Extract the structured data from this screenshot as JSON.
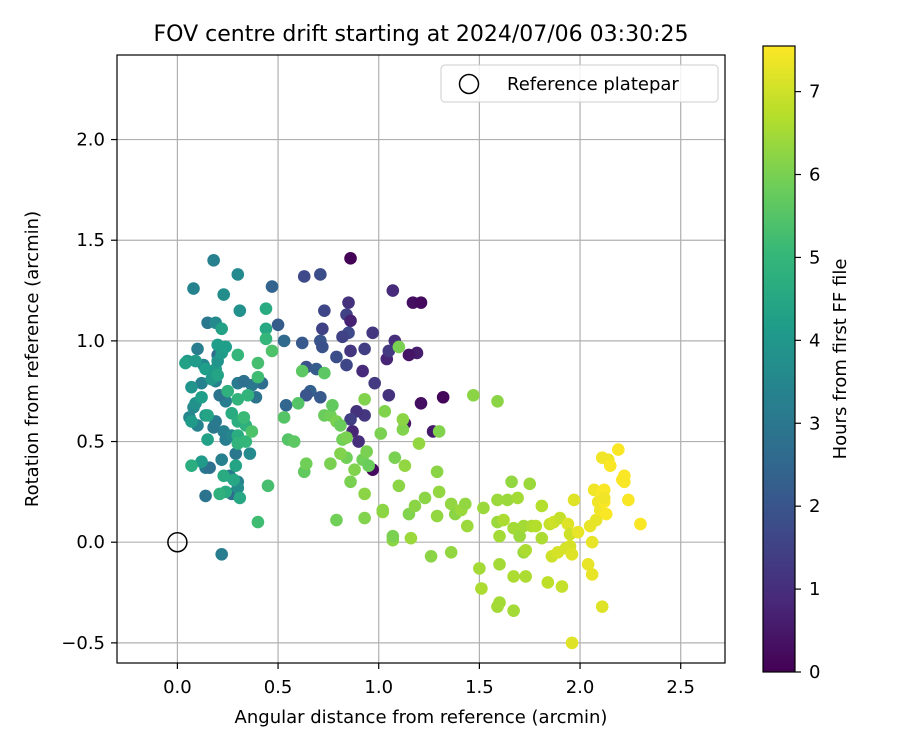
{
  "chart_data": {
    "type": "scatter",
    "title": "FOV centre drift starting at 2024/07/06 03:30:25",
    "xlabel": "Angular distance from reference (arcmin)",
    "ylabel": "Rotation from reference (arcmin)",
    "xlim": [
      -0.3,
      2.72
    ],
    "ylim": [
      -0.6,
      2.42
    ],
    "xticks": [
      0.0,
      0.5,
      1.0,
      1.5,
      2.0,
      2.5
    ],
    "yticks": [
      -0.5,
      0.0,
      0.5,
      1.0,
      1.5,
      2.0
    ],
    "xtick_labels": [
      "0.0",
      "0.5",
      "1.0",
      "1.5",
      "2.0",
      "2.5"
    ],
    "ytick_labels": [
      "−0.5",
      "0.0",
      "0.5",
      "1.0",
      "1.5",
      "2.0"
    ],
    "grid": true,
    "legend": {
      "placement": "top-right",
      "entries": [
        "Reference platepar"
      ]
    },
    "reference_point": {
      "name": "Reference platepar",
      "x": 0.0,
      "y": 0.0,
      "marker": "open-circle"
    },
    "colorbar": {
      "label": "Hours from first FF file",
      "colormap": "viridis",
      "min": 0,
      "max": 7.55,
      "ticks": [
        0,
        1,
        2,
        3,
        4,
        5,
        6,
        7
      ],
      "tick_labels": [
        "0",
        "1",
        "2",
        "3",
        "4",
        "5",
        "6",
        "7"
      ]
    },
    "colormap_stops": [
      "#440154",
      "#482878",
      "#3e4989",
      "#31688e",
      "#26828e",
      "#1f9e89",
      "#35b779",
      "#6ece58",
      "#b5de2b",
      "#fde725"
    ],
    "points": [
      {
        "x": 0.86,
        "y": 1.41,
        "t": 0.05
      },
      {
        "x": 1.17,
        "y": 1.19,
        "t": 0.3
      },
      {
        "x": 1.21,
        "y": 1.19,
        "t": 0.2
      },
      {
        "x": 1.07,
        "y": 1.25,
        "t": 0.9
      },
      {
        "x": 0.85,
        "y": 1.19,
        "t": 1.1
      },
      {
        "x": 0.84,
        "y": 1.13,
        "t": 1.5
      },
      {
        "x": 0.86,
        "y": 1.1,
        "t": 0.7
      },
      {
        "x": 0.97,
        "y": 1.04,
        "t": 1.2
      },
      {
        "x": 1.08,
        "y": 1.0,
        "t": 1.0
      },
      {
        "x": 1.19,
        "y": 0.94,
        "t": 0.6
      },
      {
        "x": 1.15,
        "y": 0.93,
        "t": 0.4
      },
      {
        "x": 1.04,
        "y": 0.91,
        "t": 0.8
      },
      {
        "x": 1.05,
        "y": 0.95,
        "t": 1.3
      },
      {
        "x": 0.93,
        "y": 0.96,
        "t": 1.4
      },
      {
        "x": 0.92,
        "y": 0.85,
        "t": 0.9
      },
      {
        "x": 0.86,
        "y": 0.95,
        "t": 1.2
      },
      {
        "x": 0.84,
        "y": 0.88,
        "t": 1.6
      },
      {
        "x": 0.79,
        "y": 0.92,
        "t": 1.8
      },
      {
        "x": 0.98,
        "y": 0.79,
        "t": 1.3
      },
      {
        "x": 1.05,
        "y": 0.73,
        "t": 1.1
      },
      {
        "x": 1.21,
        "y": 0.69,
        "t": 0.3
      },
      {
        "x": 1.32,
        "y": 0.72,
        "t": 0.1
      },
      {
        "x": 1.13,
        "y": 0.59,
        "t": 0.4
      },
      {
        "x": 1.27,
        "y": 0.55,
        "t": 0.5
      },
      {
        "x": 0.93,
        "y": 0.63,
        "t": 1.2
      },
      {
        "x": 0.89,
        "y": 0.65,
        "t": 1.1
      },
      {
        "x": 0.86,
        "y": 0.61,
        "t": 1.4
      },
      {
        "x": 0.87,
        "y": 0.55,
        "t": 0.8
      },
      {
        "x": 0.9,
        "y": 0.5,
        "t": 1.0
      },
      {
        "x": 0.97,
        "y": 0.36,
        "t": 0.2
      },
      {
        "x": 0.85,
        "y": 1.04,
        "t": 1.7
      },
      {
        "x": 0.72,
        "y": 1.06,
        "t": 1.5
      },
      {
        "x": 0.71,
        "y": 1.0,
        "t": 2.0
      },
      {
        "x": 0.72,
        "y": 0.97,
        "t": 1.9
      },
      {
        "x": 0.73,
        "y": 1.15,
        "t": 1.6
      },
      {
        "x": 0.71,
        "y": 1.33,
        "t": 1.8
      },
      {
        "x": 0.63,
        "y": 1.32,
        "t": 1.7
      },
      {
        "x": 0.64,
        "y": 0.87,
        "t": 1.9
      },
      {
        "x": 0.69,
        "y": 0.86,
        "t": 2.2
      },
      {
        "x": 0.62,
        "y": 0.99,
        "t": 2.1
      },
      {
        "x": 0.66,
        "y": 0.75,
        "t": 2.3
      },
      {
        "x": 0.64,
        "y": 0.73,
        "t": 2.0
      },
      {
        "x": 0.71,
        "y": 0.72,
        "t": 2.1
      },
      {
        "x": 0.82,
        "y": 1.02,
        "t": 1.5
      },
      {
        "x": 0.5,
        "y": 1.08,
        "t": 2.2
      },
      {
        "x": 0.53,
        "y": 1.0,
        "t": 2.6
      },
      {
        "x": 0.54,
        "y": 0.68,
        "t": 2.5
      },
      {
        "x": 0.47,
        "y": 1.27,
        "t": 2.4
      },
      {
        "x": 0.42,
        "y": 0.79,
        "t": 2.7
      },
      {
        "x": 0.37,
        "y": 0.78,
        "t": 3.0
      },
      {
        "x": 0.39,
        "y": 0.72,
        "t": 2.9
      },
      {
        "x": 0.3,
        "y": 0.79,
        "t": 3.1
      },
      {
        "x": 0.24,
        "y": 0.7,
        "t": 3.2
      },
      {
        "x": 0.23,
        "y": 0.55,
        "t": 3.3
      },
      {
        "x": 0.18,
        "y": 0.57,
        "t": 3.0
      },
      {
        "x": 0.19,
        "y": 0.84,
        "t": 2.8
      },
      {
        "x": 0.2,
        "y": 0.93,
        "t": 2.6
      },
      {
        "x": 0.19,
        "y": 0.8,
        "t": 3.4
      },
      {
        "x": 0.21,
        "y": 0.73,
        "t": 2.9
      },
      {
        "x": 0.19,
        "y": 0.6,
        "t": 3.1
      },
      {
        "x": 0.12,
        "y": 0.79,
        "t": 3.3
      },
      {
        "x": 0.13,
        "y": 0.88,
        "t": 3.5
      },
      {
        "x": 0.1,
        "y": 0.96,
        "t": 3.2
      },
      {
        "x": 0.15,
        "y": 1.09,
        "t": 3.0
      },
      {
        "x": 0.19,
        "y": 1.09,
        "t": 3.6
      },
      {
        "x": 0.08,
        "y": 1.26,
        "t": 3.4
      },
      {
        "x": 0.18,
        "y": 1.4,
        "t": 3.3
      },
      {
        "x": 0.23,
        "y": 1.23,
        "t": 3.7
      },
      {
        "x": 0.3,
        "y": 1.33,
        "t": 3.6
      },
      {
        "x": 0.31,
        "y": 1.15,
        "t": 3.8
      },
      {
        "x": 0.22,
        "y": -0.06,
        "t": 3.2
      },
      {
        "x": 0.14,
        "y": 0.23,
        "t": 2.9
      },
      {
        "x": 0.14,
        "y": 0.37,
        "t": 3.1
      },
      {
        "x": 0.16,
        "y": 0.37,
        "t": 2.8
      },
      {
        "x": 0.22,
        "y": 0.41,
        "t": 3.3
      },
      {
        "x": 0.24,
        "y": 0.51,
        "t": 3.2
      },
      {
        "x": 0.27,
        "y": 0.53,
        "t": 3.5
      },
      {
        "x": 0.29,
        "y": 0.44,
        "t": 3.0
      },
      {
        "x": 0.33,
        "y": 0.8,
        "t": 2.8
      },
      {
        "x": 0.36,
        "y": 0.44,
        "t": 3.6
      },
      {
        "x": 0.26,
        "y": 0.33,
        "t": 3.1
      },
      {
        "x": 0.27,
        "y": 0.24,
        "t": 2.7
      },
      {
        "x": 0.3,
        "y": 0.3,
        "t": 3.4
      },
      {
        "x": 0.3,
        "y": 0.27,
        "t": 3.7
      },
      {
        "x": 0.08,
        "y": 0.67,
        "t": 3.6
      },
      {
        "x": 0.06,
        "y": 0.62,
        "t": 3.5
      },
      {
        "x": 0.09,
        "y": 0.69,
        "t": 3.8
      },
      {
        "x": 0.1,
        "y": 0.58,
        "t": 3.4
      },
      {
        "x": 0.07,
        "y": 0.77,
        "t": 3.9
      },
      {
        "x": 0.05,
        "y": 0.9,
        "t": 4.0
      },
      {
        "x": 0.04,
        "y": 0.89,
        "t": 4.3
      },
      {
        "x": 0.09,
        "y": 0.9,
        "t": 4.1
      },
      {
        "x": 0.14,
        "y": 0.86,
        "t": 4.2
      },
      {
        "x": 0.17,
        "y": 0.81,
        "t": 4.0
      },
      {
        "x": 0.19,
        "y": 0.86,
        "t": 4.1
      },
      {
        "x": 0.2,
        "y": 0.9,
        "t": 3.9
      },
      {
        "x": 0.2,
        "y": 0.98,
        "t": 4.2
      },
      {
        "x": 0.22,
        "y": 1.06,
        "t": 4.3
      },
      {
        "x": 0.2,
        "y": 0.83,
        "t": 4.4
      },
      {
        "x": 0.22,
        "y": 0.94,
        "t": 4.1
      },
      {
        "x": 0.24,
        "y": 0.97,
        "t": 4.2
      },
      {
        "x": 0.07,
        "y": 0.6,
        "t": 4.1
      },
      {
        "x": 0.12,
        "y": 0.72,
        "t": 4.2
      },
      {
        "x": 0.14,
        "y": 0.63,
        "t": 4.0
      },
      {
        "x": 0.15,
        "y": 0.51,
        "t": 4.3
      },
      {
        "x": 0.12,
        "y": 0.4,
        "t": 4.1
      },
      {
        "x": 0.15,
        "y": 0.63,
        "t": 4.4
      },
      {
        "x": 0.29,
        "y": 0.38,
        "t": 4.4
      },
      {
        "x": 0.28,
        "y": 0.31,
        "t": 4.5
      },
      {
        "x": 0.31,
        "y": 0.22,
        "t": 4.5
      },
      {
        "x": 0.24,
        "y": 0.25,
        "t": 4.6
      },
      {
        "x": 0.07,
        "y": 0.38,
        "t": 4.7
      },
      {
        "x": 0.21,
        "y": 0.24,
        "t": 4.8
      },
      {
        "x": 0.23,
        "y": 0.33,
        "t": 4.6
      },
      {
        "x": 0.44,
        "y": 1.06,
        "t": 4.5
      },
      {
        "x": 0.44,
        "y": 1.16,
        "t": 4.6
      },
      {
        "x": 0.3,
        "y": 0.53,
        "t": 4.7
      },
      {
        "x": 0.27,
        "y": 0.64,
        "t": 4.6
      },
      {
        "x": 0.3,
        "y": 0.6,
        "t": 4.7
      },
      {
        "x": 0.34,
        "y": 0.58,
        "t": 4.8
      },
      {
        "x": 0.3,
        "y": 0.49,
        "t": 4.9
      },
      {
        "x": 0.34,
        "y": 0.5,
        "t": 5.0
      },
      {
        "x": 0.25,
        "y": 0.75,
        "t": 4.8
      },
      {
        "x": 0.3,
        "y": 0.71,
        "t": 4.9
      },
      {
        "x": 0.33,
        "y": 0.62,
        "t": 5.1
      },
      {
        "x": 0.35,
        "y": 0.73,
        "t": 4.9
      },
      {
        "x": 0.3,
        "y": 0.93,
        "t": 5.0
      },
      {
        "x": 0.4,
        "y": 0.82,
        "t": 5.2
      },
      {
        "x": 0.4,
        "y": 0.89,
        "t": 5.3
      },
      {
        "x": 0.44,
        "y": 1.01,
        "t": 5.0
      },
      {
        "x": 0.47,
        "y": 0.95,
        "t": 5.4
      },
      {
        "x": 0.4,
        "y": 0.1,
        "t": 5.2
      },
      {
        "x": 0.45,
        "y": 0.28,
        "t": 5.3
      },
      {
        "x": 0.37,
        "y": 0.55,
        "t": 5.4
      },
      {
        "x": 0.55,
        "y": 0.51,
        "t": 5.5
      },
      {
        "x": 0.53,
        "y": 0.62,
        "t": 5.5
      },
      {
        "x": 0.58,
        "y": 0.5,
        "t": 5.6
      },
      {
        "x": 0.6,
        "y": 0.69,
        "t": 5.5
      },
      {
        "x": 0.62,
        "y": 0.85,
        "t": 5.6
      },
      {
        "x": 0.63,
        "y": 0.35,
        "t": 5.7
      },
      {
        "x": 0.64,
        "y": 0.39,
        "t": 5.9
      },
      {
        "x": 0.73,
        "y": 0.84,
        "t": 5.6
      },
      {
        "x": 0.73,
        "y": 0.63,
        "t": 5.8
      },
      {
        "x": 0.76,
        "y": 0.63,
        "t": 5.9
      },
      {
        "x": 0.77,
        "y": 0.68,
        "t": 5.7
      },
      {
        "x": 0.79,
        "y": 0.6,
        "t": 6.0
      },
      {
        "x": 0.81,
        "y": 0.58,
        "t": 5.8
      },
      {
        "x": 0.82,
        "y": 0.51,
        "t": 5.9
      },
      {
        "x": 0.84,
        "y": 0.52,
        "t": 6.0
      },
      {
        "x": 0.84,
        "y": 0.42,
        "t": 5.9
      },
      {
        "x": 0.81,
        "y": 0.44,
        "t": 6.1
      },
      {
        "x": 0.76,
        "y": 0.39,
        "t": 6.0
      },
      {
        "x": 0.79,
        "y": 0.11,
        "t": 5.9
      },
      {
        "x": 0.86,
        "y": 0.3,
        "t": 6.0
      },
      {
        "x": 0.88,
        "y": 0.36,
        "t": 6.1
      },
      {
        "x": 0.92,
        "y": 0.41,
        "t": 5.9
      },
      {
        "x": 0.94,
        "y": 0.45,
        "t": 6.0
      },
      {
        "x": 0.93,
        "y": 0.71,
        "t": 6.1
      },
      {
        "x": 0.95,
        "y": 0.38,
        "t": 5.8
      },
      {
        "x": 0.93,
        "y": 0.24,
        "t": 6.2
      },
      {
        "x": 0.93,
        "y": 0.12,
        "t": 6.1
      },
      {
        "x": 1.01,
        "y": 0.54,
        "t": 6.0
      },
      {
        "x": 1.02,
        "y": 0.15,
        "t": 6.3
      },
      {
        "x": 1.02,
        "y": 0.16,
        "t": 6.2
      },
      {
        "x": 1.03,
        "y": 0.65,
        "t": 6.1
      },
      {
        "x": 1.07,
        "y": 0.01,
        "t": 6.2
      },
      {
        "x": 1.07,
        "y": 0.03,
        "t": 6.0
      },
      {
        "x": 1.08,
        "y": 0.42,
        "t": 6.0
      },
      {
        "x": 1.1,
        "y": 0.28,
        "t": 6.2
      },
      {
        "x": 1.1,
        "y": 0.97,
        "t": 6.0
      },
      {
        "x": 1.12,
        "y": 0.56,
        "t": 6.1
      },
      {
        "x": 1.12,
        "y": 0.61,
        "t": 6.2
      },
      {
        "x": 1.13,
        "y": 0.38,
        "t": 6.3
      },
      {
        "x": 1.15,
        "y": 0.14,
        "t": 6.1
      },
      {
        "x": 1.16,
        "y": 0.02,
        "t": 6.4
      },
      {
        "x": 1.18,
        "y": 0.18,
        "t": 6.2
      },
      {
        "x": 1.2,
        "y": 0.49,
        "t": 6.3
      },
      {
        "x": 1.23,
        "y": 0.22,
        "t": 6.2
      },
      {
        "x": 1.26,
        "y": -0.07,
        "t": 6.2
      },
      {
        "x": 1.29,
        "y": 0.13,
        "t": 6.3
      },
      {
        "x": 1.29,
        "y": 0.35,
        "t": 6.2
      },
      {
        "x": 1.3,
        "y": 0.25,
        "t": 6.3
      },
      {
        "x": 1.3,
        "y": 0.55,
        "t": 6.1
      },
      {
        "x": 1.36,
        "y": -0.05,
        "t": 6.3
      },
      {
        "x": 1.36,
        "y": 0.19,
        "t": 6.3
      },
      {
        "x": 1.38,
        "y": 0.14,
        "t": 6.2
      },
      {
        "x": 1.41,
        "y": 0.16,
        "t": 6.4
      },
      {
        "x": 1.43,
        "y": 0.19,
        "t": 6.3
      },
      {
        "x": 1.44,
        "y": 0.08,
        "t": 6.4
      },
      {
        "x": 1.47,
        "y": 0.73,
        "t": 6.2
      },
      {
        "x": 1.5,
        "y": -0.13,
        "t": 6.5
      },
      {
        "x": 1.51,
        "y": -0.23,
        "t": 6.6
      },
      {
        "x": 1.52,
        "y": 0.17,
        "t": 6.4
      },
      {
        "x": 1.59,
        "y": 0.7,
        "t": 6.2
      },
      {
        "x": 1.59,
        "y": 0.21,
        "t": 6.4
      },
      {
        "x": 1.59,
        "y": 0.1,
        "t": 6.4
      },
      {
        "x": 1.6,
        "y": 0.03,
        "t": 6.5
      },
      {
        "x": 1.6,
        "y": -0.3,
        "t": 6.5
      },
      {
        "x": 1.59,
        "y": -0.32,
        "t": 6.5
      },
      {
        "x": 1.6,
        "y": -0.11,
        "t": 6.5
      },
      {
        "x": 1.62,
        "y": 0.11,
        "t": 6.6
      },
      {
        "x": 1.64,
        "y": 0.21,
        "t": 6.4
      },
      {
        "x": 1.66,
        "y": 0.3,
        "t": 6.3
      },
      {
        "x": 1.67,
        "y": 0.07,
        "t": 6.5
      },
      {
        "x": 1.67,
        "y": -0.34,
        "t": 6.5
      },
      {
        "x": 1.67,
        "y": -0.17,
        "t": 6.6
      },
      {
        "x": 1.69,
        "y": 0.22,
        "t": 6.5
      },
      {
        "x": 1.7,
        "y": 0.03,
        "t": 6.4
      },
      {
        "x": 1.72,
        "y": 0.08,
        "t": 6.5
      },
      {
        "x": 1.72,
        "y": -0.05,
        "t": 6.4
      },
      {
        "x": 1.73,
        "y": -0.04,
        "t": 6.6
      },
      {
        "x": 1.73,
        "y": -0.17,
        "t": 6.6
      },
      {
        "x": 1.75,
        "y": 0.29,
        "t": 6.4
      },
      {
        "x": 1.76,
        "y": 0.08,
        "t": 6.6
      },
      {
        "x": 1.78,
        "y": 0.08,
        "t": 6.7
      },
      {
        "x": 1.81,
        "y": 0.02,
        "t": 6.6
      },
      {
        "x": 1.81,
        "y": 0.18,
        "t": 6.7
      },
      {
        "x": 1.84,
        "y": -0.2,
        "t": 6.8
      },
      {
        "x": 1.85,
        "y": 0.09,
        "t": 6.9
      },
      {
        "x": 1.86,
        "y": -0.07,
        "t": 7.0
      },
      {
        "x": 1.87,
        "y": 0.1,
        "t": 7.0
      },
      {
        "x": 1.89,
        "y": -0.05,
        "t": 7.1
      },
      {
        "x": 1.9,
        "y": 0.12,
        "t": 6.9
      },
      {
        "x": 1.91,
        "y": -0.22,
        "t": 6.9
      },
      {
        "x": 1.93,
        "y": -0.03,
        "t": 7.1
      },
      {
        "x": 1.94,
        "y": 0.09,
        "t": 7.2
      },
      {
        "x": 1.95,
        "y": 0.04,
        "t": 7.0
      },
      {
        "x": 1.95,
        "y": -0.02,
        "t": 7.1
      },
      {
        "x": 1.96,
        "y": -0.06,
        "t": 7.2
      },
      {
        "x": 1.96,
        "y": -0.5,
        "t": 7.2
      },
      {
        "x": 1.97,
        "y": 0.21,
        "t": 7.2
      },
      {
        "x": 1.99,
        "y": 0.05,
        "t": 7.3
      },
      {
        "x": 2.04,
        "y": -0.11,
        "t": 7.3
      },
      {
        "x": 2.06,
        "y": -0.16,
        "t": 7.3
      },
      {
        "x": 2.06,
        "y": 0.0,
        "t": 7.3
      },
      {
        "x": 2.07,
        "y": 0.26,
        "t": 7.4
      },
      {
        "x": 2.08,
        "y": 0.11,
        "t": 7.3
      },
      {
        "x": 2.09,
        "y": 0.2,
        "t": 7.4
      },
      {
        "x": 2.1,
        "y": 0.16,
        "t": 7.4
      },
      {
        "x": 2.11,
        "y": 0.25,
        "t": 7.5
      },
      {
        "x": 2.11,
        "y": 0.42,
        "t": 7.4
      },
      {
        "x": 2.11,
        "y": -0.32,
        "t": 7.2
      },
      {
        "x": 2.12,
        "y": 0.2,
        "t": 7.5
      },
      {
        "x": 2.12,
        "y": 0.26,
        "t": 7.5
      },
      {
        "x": 2.13,
        "y": 0.14,
        "t": 7.5
      },
      {
        "x": 2.14,
        "y": 0.41,
        "t": 7.4
      },
      {
        "x": 2.15,
        "y": 0.38,
        "t": 7.5
      },
      {
        "x": 2.19,
        "y": 0.46,
        "t": 7.5
      },
      {
        "x": 2.21,
        "y": 0.31,
        "t": 7.5
      },
      {
        "x": 2.22,
        "y": 0.33,
        "t": 7.5
      },
      {
        "x": 2.22,
        "y": 0.3,
        "t": 7.5
      },
      {
        "x": 2.24,
        "y": 0.21,
        "t": 7.5
      },
      {
        "x": 2.3,
        "y": 0.09,
        "t": 7.5
      },
      {
        "x": 2.12,
        "y": 0.22,
        "t": 7.4
      },
      {
        "x": 2.05,
        "y": 0.08,
        "t": 7.3
      }
    ]
  }
}
